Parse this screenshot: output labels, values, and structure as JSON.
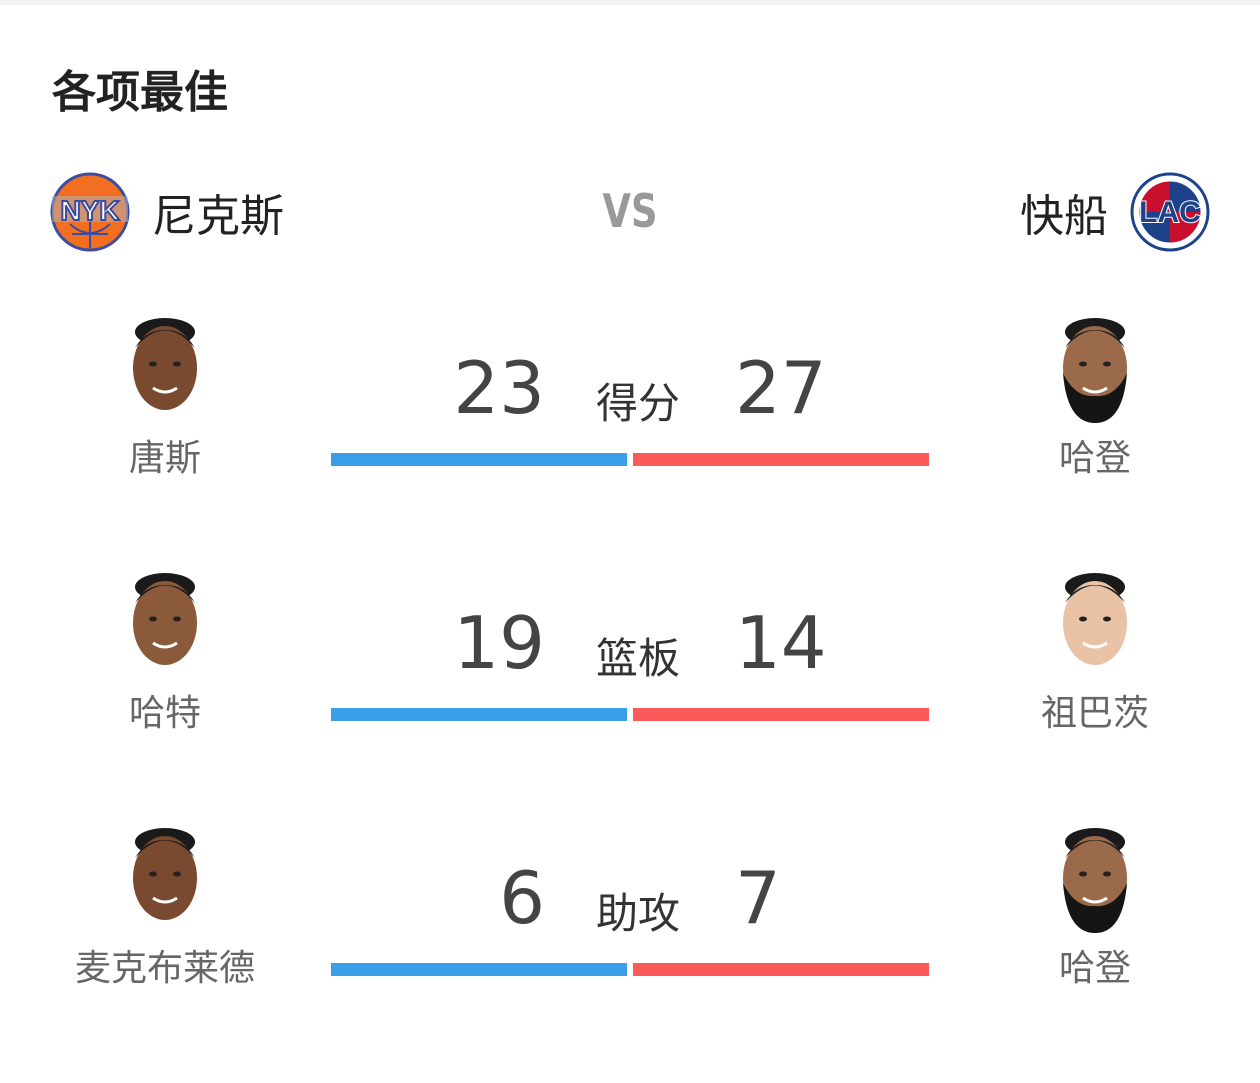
{
  "title": "各项最佳",
  "vs": "VS",
  "home": {
    "name": "尼克斯",
    "logo": "NYK",
    "color": "#3b9ee8"
  },
  "away": {
    "name": "快船",
    "logo": "LAC",
    "color": "#fb5a5a"
  },
  "stats": [
    {
      "category": "得分",
      "home_value": "23",
      "away_value": "27",
      "home_player": "唐斯",
      "away_player": "哈登"
    },
    {
      "category": "篮板",
      "home_value": "19",
      "away_value": "14",
      "home_player": "哈特",
      "away_player": "祖巴茨"
    },
    {
      "category": "助攻",
      "home_value": "6",
      "away_value": "7",
      "home_player": "麦克布莱德",
      "away_player": "哈登"
    }
  ]
}
